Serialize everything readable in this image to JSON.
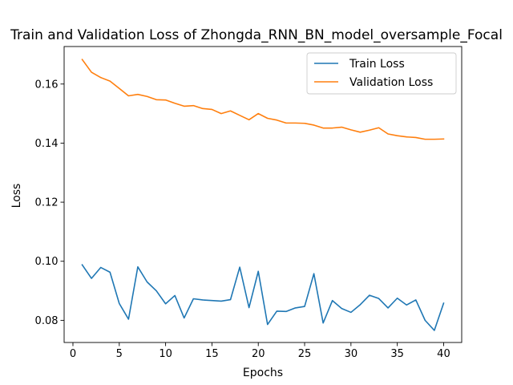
{
  "chart_data": {
    "type": "line",
    "title": "Train and Validation Loss of Zhongda_RNN_BN_model_oversample_Focal",
    "xlabel": "Epochs",
    "ylabel": "Loss",
    "xlim": [
      -0.95,
      41.95
    ],
    "ylim": [
      0.0725,
      0.1727
    ],
    "xticks": [
      0,
      5,
      10,
      15,
      20,
      25,
      30,
      35,
      40
    ],
    "xtick_labels": [
      "0",
      "5",
      "10",
      "15",
      "20",
      "25",
      "30",
      "35",
      "40"
    ],
    "yticks": [
      0.08,
      0.1,
      0.12,
      0.14,
      0.16
    ],
    "ytick_labels": [
      "0.08",
      "0.10",
      "0.12",
      "0.14",
      "0.16"
    ],
    "grid": false,
    "legend_position": "top-right",
    "x": [
      1,
      2,
      3,
      4,
      5,
      6,
      7,
      8,
      9,
      10,
      11,
      12,
      13,
      14,
      15,
      16,
      17,
      18,
      19,
      20,
      21,
      22,
      23,
      24,
      25,
      26,
      27,
      28,
      29,
      30,
      31,
      32,
      33,
      34,
      35,
      36,
      37,
      38,
      39,
      40
    ],
    "series": [
      {
        "name": "Train Loss",
        "color": "#1f77b4",
        "values": [
          0.0988,
          0.0942,
          0.0979,
          0.0963,
          0.0857,
          0.0804,
          0.0981,
          0.093,
          0.09,
          0.0856,
          0.0884,
          0.0808,
          0.0873,
          0.0869,
          0.0867,
          0.0865,
          0.087,
          0.098,
          0.0843,
          0.0966,
          0.0786,
          0.0831,
          0.083,
          0.0842,
          0.0847,
          0.0958,
          0.0791,
          0.0867,
          0.084,
          0.0827,
          0.0853,
          0.0885,
          0.0874,
          0.0842,
          0.0875,
          0.0852,
          0.0869,
          0.08,
          0.0766,
          0.0858
        ]
      },
      {
        "name": "Validation Loss",
        "color": "#ff7f0e",
        "values": [
          0.1683,
          0.164,
          0.1622,
          0.161,
          0.1585,
          0.156,
          0.1565,
          0.1558,
          0.1547,
          0.1546,
          0.1535,
          0.1525,
          0.1527,
          0.1517,
          0.1514,
          0.15,
          0.1509,
          0.1494,
          0.1479,
          0.15,
          0.1484,
          0.1478,
          0.1468,
          0.1468,
          0.1467,
          0.1461,
          0.1451,
          0.1451,
          0.1454,
          0.1445,
          0.1437,
          0.1444,
          0.1452,
          0.1431,
          0.1425,
          0.1421,
          0.1419,
          0.1413,
          0.1413,
          0.1414
        ]
      }
    ]
  }
}
